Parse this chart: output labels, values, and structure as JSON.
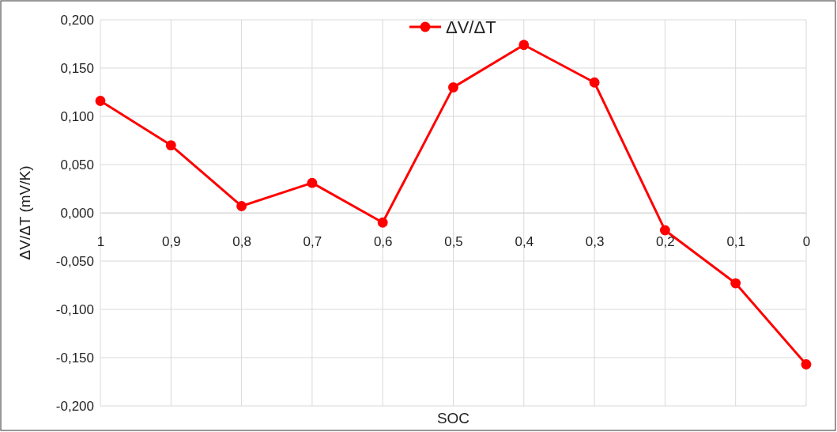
{
  "chart_data": {
    "type": "line",
    "xlabel": "SOC",
    "ylabel": "ΔV/ΔT (mV/K)",
    "categories": [
      "1",
      "0,9",
      "0,8",
      "0,7",
      "0,6",
      "0,5",
      "0,4",
      "0,3",
      "0,2",
      "0,1",
      "0"
    ],
    "series": [
      {
        "name": "ΔV/ΔT",
        "color": "#ff0000",
        "values": [
          0.116,
          0.07,
          0.007,
          0.031,
          -0.01,
          0.13,
          0.174,
          0.135,
          -0.018,
          -0.073,
          -0.157
        ]
      }
    ],
    "ylim": [
      -0.2,
      0.2
    ],
    "yticks": [
      {
        "value": -0.2,
        "label": "-0,200"
      },
      {
        "value": -0.15,
        "label": "-0,150"
      },
      {
        "value": -0.1,
        "label": "-0,100"
      },
      {
        "value": -0.05,
        "label": "-0,050"
      },
      {
        "value": 0,
        "label": "0,000"
      },
      {
        "value": 0.05,
        "label": "0,050"
      },
      {
        "value": 0.1,
        "label": "0,100"
      },
      {
        "value": 0.15,
        "label": "0,150"
      },
      {
        "value": 0.2,
        "label": "0,200"
      }
    ],
    "grid": true,
    "legend": "top",
    "marker": "circle",
    "line_style": "solid"
  }
}
